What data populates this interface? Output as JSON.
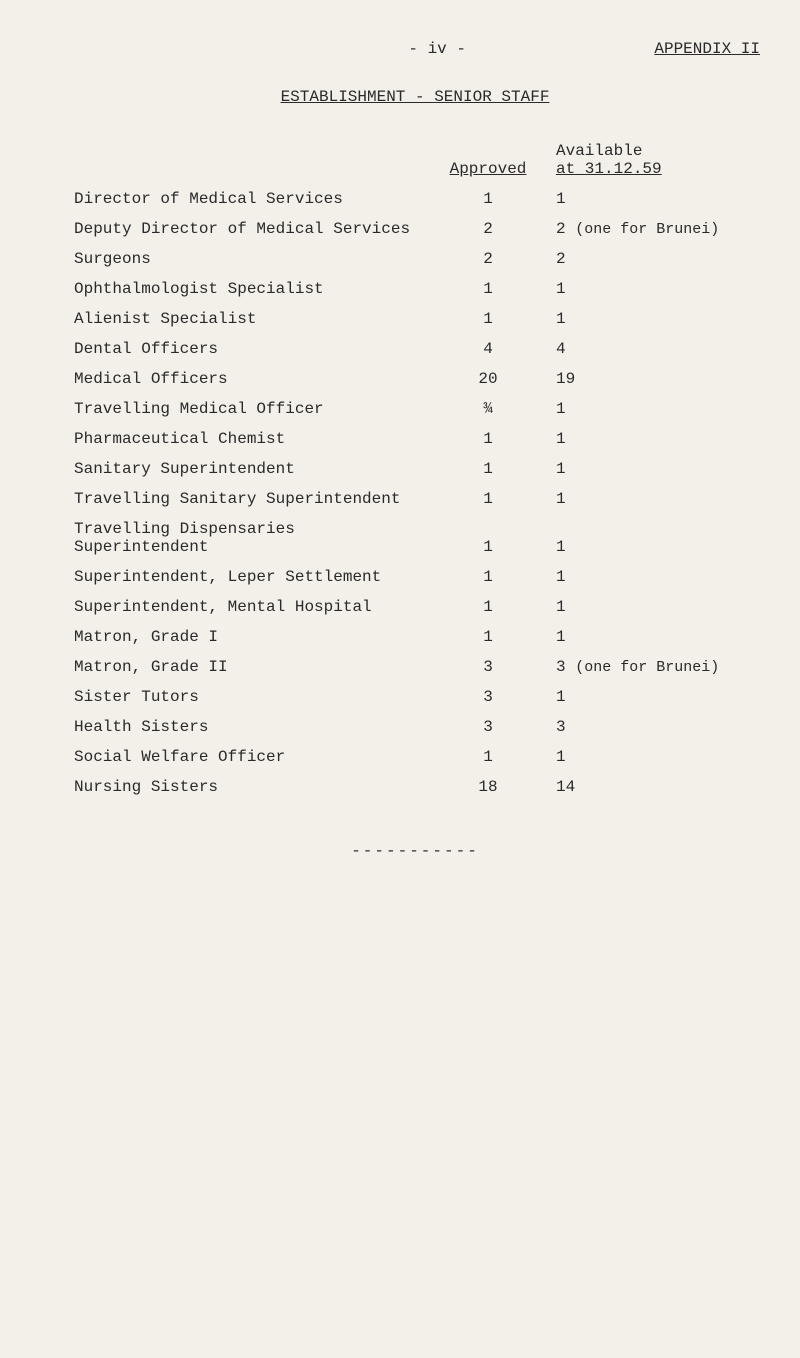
{
  "page_number_display": "- iv -",
  "appendix_label": "APPENDIX  II",
  "subtitle": "ESTABLISHMENT - SENIOR STAFF",
  "columns": {
    "approved": "Approved",
    "available_line1": "Available",
    "available_line2": "at 31.12.59"
  },
  "rows": [
    {
      "label": "Director of Medical Services",
      "approved": "1",
      "available": "1",
      "note": ""
    },
    {
      "label": "Deputy Director of Medical Services",
      "approved": "2",
      "available": "2",
      "note": "(one for Brunei)"
    },
    {
      "label": "Surgeons",
      "approved": "2",
      "available": "2",
      "note": ""
    },
    {
      "label": "Ophthalmologist Specialist",
      "approved": "1",
      "available": "1",
      "note": ""
    },
    {
      "label": "Alienist Specialist",
      "approved": "1",
      "available": "1",
      "note": ""
    },
    {
      "label": "Dental Officers",
      "approved": "4",
      "available": "4",
      "note": ""
    },
    {
      "label": "Medical Officers",
      "approved": "20",
      "available": "19",
      "note": ""
    },
    {
      "label": "Travelling Medical Officer",
      "approved": "¾",
      "available": "1",
      "note": ""
    },
    {
      "label": "Pharmaceutical Chemist",
      "approved": "1",
      "available": "1",
      "note": ""
    },
    {
      "label": "Sanitary Superintendent",
      "approved": "1",
      "available": "1",
      "note": ""
    },
    {
      "label": "Travelling Sanitary Superintendent",
      "approved": "1",
      "available": "1",
      "note": ""
    },
    {
      "label": "Travelling Dispensaries Superintendent",
      "approved": "1",
      "available": "1",
      "note": ""
    },
    {
      "label": "Superintendent, Leper Settlement",
      "approved": "1",
      "available": "1",
      "note": ""
    },
    {
      "label": "Superintendent, Mental Hospital",
      "approved": "1",
      "available": "1",
      "note": ""
    },
    {
      "label": "Matron, Grade I",
      "approved": "1",
      "available": "1",
      "note": ""
    },
    {
      "label": "Matron, Grade II",
      "approved": "3",
      "available": "3",
      "note": "(one for Brunei)"
    },
    {
      "label": "Sister Tutors",
      "approved": "3",
      "available": "1",
      "note": ""
    },
    {
      "label": "Health Sisters",
      "approved": "3",
      "available": "3",
      "note": ""
    },
    {
      "label": "Social Welfare Officer",
      "approved": "1",
      "available": "1",
      "note": ""
    },
    {
      "label": "Nursing Sisters",
      "approved": "18",
      "available": "14",
      "note": ""
    }
  ],
  "dashes": "-----------",
  "style": {
    "background_color": "#f2f0e8",
    "text_color": "#2a2a2a",
    "font_family": "Courier New",
    "base_font_size_pt": 12
  }
}
